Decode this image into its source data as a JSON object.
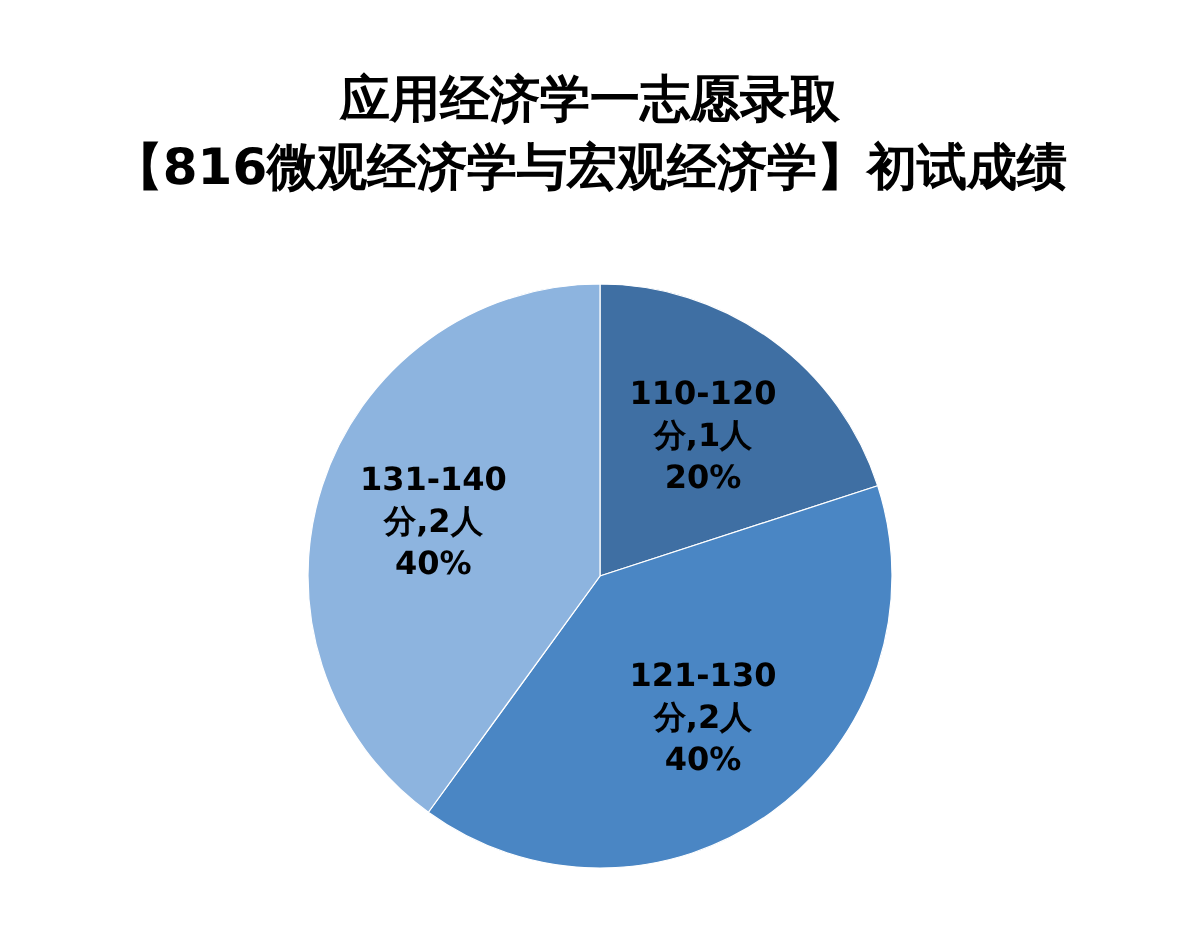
{
  "chart_data": {
    "type": "pie",
    "title": "应用经济学一志愿录取",
    "subtitle": "【816微观经济学与宏观经济学】初试成绩",
    "categories": [
      "110-120分",
      "121-130分",
      "131-140分"
    ],
    "values": [
      1,
      2,
      2
    ],
    "colors": [
      "#3f6fa3",
      "#4a86c4",
      "#8db4df"
    ],
    "value_labels": [
      ",1人 20%",
      ",2人 40%",
      ",2人 40%"
    ]
  }
}
